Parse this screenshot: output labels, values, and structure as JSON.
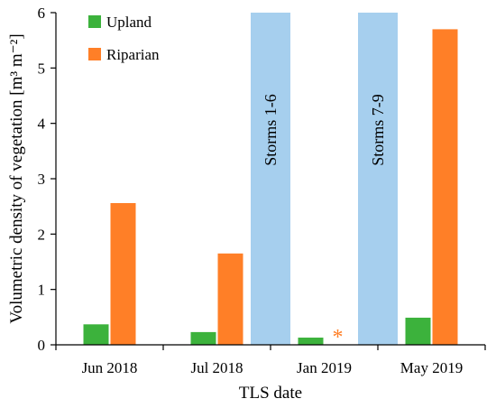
{
  "chart_data": {
    "type": "bar",
    "title": "",
    "xlabel": "TLS date",
    "ylabel": "Volumetric density of vegetation [m³ m⁻²]",
    "ylim": [
      0,
      6
    ],
    "yticks": [
      0,
      1,
      2,
      3,
      4,
      5,
      6
    ],
    "grid": false,
    "legend_position": "top-left",
    "categories": [
      "Jun 2018",
      "Jul 2018",
      "Jan 2019",
      "May 2019"
    ],
    "series": [
      {
        "name": "Upland",
        "color": "#3cb23c",
        "values": [
          0.37,
          0.23,
          0.13,
          0.49
        ]
      },
      {
        "name": "Riparian",
        "color": "#ff7f27",
        "values": [
          2.56,
          1.65,
          null,
          5.7
        ]
      }
    ],
    "annotations": [
      {
        "type": "band",
        "label": "Storms 1-6",
        "between": [
          "Jul 2018",
          "Jan 2019"
        ],
        "color": "#a6cfee"
      },
      {
        "type": "band",
        "label": "Storms 7-9",
        "between": [
          "Jan 2019",
          "May 2019"
        ],
        "color": "#a6cfee"
      },
      {
        "type": "marker",
        "text": "*",
        "category": "Jan 2019",
        "series": "Riparian",
        "color": "#ff7f27"
      }
    ]
  }
}
